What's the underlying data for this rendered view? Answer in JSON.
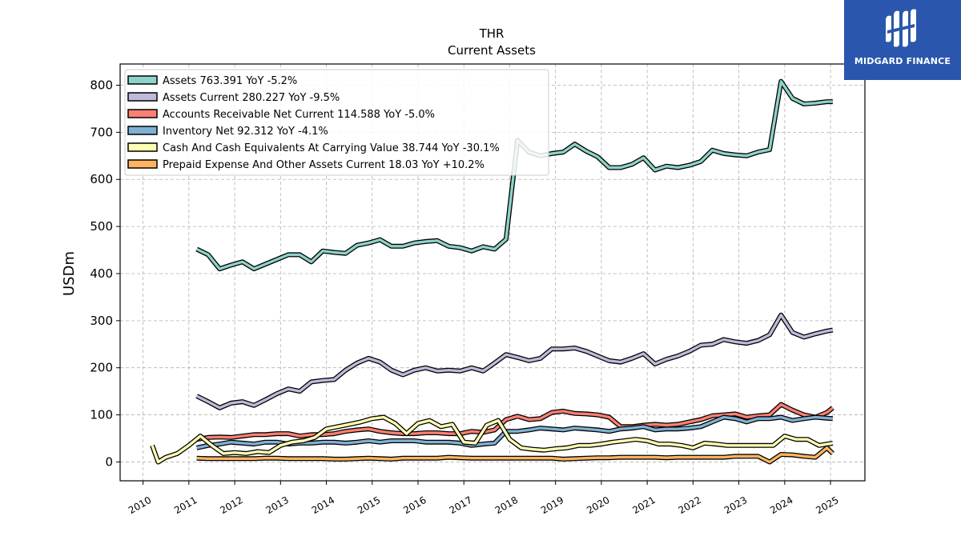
{
  "brand": {
    "name": "MIDGARD FINANCE",
    "bg_color": "#2a57ad"
  },
  "chart_data": {
    "type": "line",
    "title": "THR",
    "subtitle": "Current  Assets",
    "ylabel": "USDm",
    "xlabel": "",
    "xlim": [
      2009.5,
      2025.75
    ],
    "ylim": [
      -40,
      845
    ],
    "x_ticks": [
      "2010",
      "2011",
      "2012",
      "2013",
      "2014",
      "2015",
      "2016",
      "2017",
      "2018",
      "2019",
      "2020",
      "2021",
      "2022",
      "2023",
      "2024",
      "2025"
    ],
    "y_ticks": [
      0,
      100,
      200,
      300,
      400,
      500,
      600,
      700,
      800
    ],
    "grid": true,
    "legend_position": "top-left",
    "series": [
      {
        "name": "Assets",
        "legend": "Assets  763.391 YoY -5.2%",
        "color": "#8dd3c7",
        "x": [
          2011.17,
          2011.42,
          2011.67,
          2011.92,
          2012.17,
          2012.42,
          2012.67,
          2012.92,
          2013.17,
          2013.42,
          2013.67,
          2013.92,
          2014.17,
          2014.42,
          2014.67,
          2014.92,
          2015.17,
          2015.42,
          2015.67,
          2015.92,
          2016.17,
          2016.42,
          2016.67,
          2016.92,
          2017.17,
          2017.42,
          2017.67,
          2017.92,
          2018.17,
          2018.42,
          2018.67,
          2018.92,
          2019.17,
          2019.42,
          2019.67,
          2019.92,
          2020.17,
          2020.42,
          2020.67,
          2020.92,
          2021.17,
          2021.42,
          2021.67,
          2021.92,
          2022.17,
          2022.42,
          2022.67,
          2022.92,
          2023.17,
          2023.42,
          2023.67,
          2023.92,
          2024.17,
          2024.42,
          2024.67,
          2024.92,
          2025.05
        ],
        "y": [
          452,
          440,
          410,
          418,
          425,
          410,
          420,
          430,
          440,
          440,
          425,
          448,
          445,
          443,
          460,
          465,
          472,
          458,
          458,
          465,
          468,
          470,
          458,
          455,
          448,
          457,
          452,
          473,
          683,
          658,
          650,
          655,
          658,
          675,
          660,
          648,
          625,
          625,
          632,
          646,
          620,
          628,
          625,
          630,
          638,
          662,
          655,
          652,
          650,
          658,
          663,
          808,
          772,
          760,
          762,
          765,
          765
        ]
      },
      {
        "name": "Assets Current",
        "legend": "Assets Current  280.227 YoY -9.5%",
        "color": "#bebada",
        "x": [
          2011.17,
          2011.42,
          2011.67,
          2011.92,
          2012.17,
          2012.42,
          2012.67,
          2012.92,
          2013.17,
          2013.42,
          2013.67,
          2013.92,
          2014.17,
          2014.42,
          2014.67,
          2014.92,
          2015.17,
          2015.42,
          2015.67,
          2015.92,
          2016.17,
          2016.42,
          2016.67,
          2016.92,
          2017.17,
          2017.42,
          2017.67,
          2017.92,
          2018.17,
          2018.42,
          2018.67,
          2018.92,
          2019.17,
          2019.42,
          2019.67,
          2019.92,
          2020.17,
          2020.42,
          2020.67,
          2020.92,
          2021.17,
          2021.42,
          2021.67,
          2021.92,
          2022.17,
          2022.42,
          2022.67,
          2022.92,
          2023.17,
          2023.42,
          2023.67,
          2023.92,
          2024.17,
          2024.42,
          2024.67,
          2024.92,
          2025.05
        ],
        "y": [
          140,
          128,
          115,
          125,
          128,
          120,
          132,
          145,
          155,
          150,
          170,
          173,
          175,
          195,
          210,
          220,
          212,
          195,
          185,
          195,
          200,
          193,
          195,
          193,
          200,
          193,
          210,
          228,
          222,
          215,
          220,
          240,
          240,
          242,
          235,
          225,
          215,
          212,
          220,
          230,
          208,
          218,
          225,
          235,
          248,
          250,
          260,
          255,
          252,
          258,
          270,
          312,
          275,
          265,
          272,
          278,
          280
        ]
      },
      {
        "name": "Accounts Receivable Net Current",
        "legend": "Accounts Receivable Net Current  114.588 YoY -5.0%",
        "color": "#fb8072",
        "x": [
          2011.17,
          2011.42,
          2011.67,
          2011.92,
          2012.17,
          2012.42,
          2012.67,
          2012.92,
          2013.17,
          2013.42,
          2013.67,
          2013.92,
          2014.17,
          2014.42,
          2014.67,
          2014.92,
          2015.17,
          2015.42,
          2015.67,
          2015.92,
          2016.17,
          2016.42,
          2016.67,
          2016.92,
          2017.17,
          2017.42,
          2017.67,
          2017.92,
          2018.17,
          2018.42,
          2018.67,
          2018.92,
          2019.17,
          2019.42,
          2019.67,
          2019.92,
          2020.17,
          2020.42,
          2020.67,
          2020.92,
          2021.17,
          2021.42,
          2021.67,
          2021.92,
          2022.17,
          2022.42,
          2022.67,
          2022.92,
          2023.17,
          2023.42,
          2023.67,
          2023.92,
          2024.17,
          2024.42,
          2024.67,
          2024.92,
          2025.05
        ],
        "y": [
          48,
          52,
          53,
          52,
          55,
          58,
          58,
          60,
          60,
          55,
          58,
          58,
          60,
          65,
          68,
          70,
          65,
          62,
          60,
          60,
          62,
          62,
          60,
          60,
          65,
          63,
          68,
          90,
          97,
          90,
          92,
          105,
          108,
          103,
          102,
          100,
          95,
          75,
          75,
          78,
          80,
          78,
          80,
          85,
          90,
          98,
          100,
          102,
          95,
          98,
          100,
          122,
          110,
          100,
          95,
          105,
          115
        ]
      },
      {
        "name": "Inventory Net",
        "legend": "Inventory Net  92.312 YoY -4.1%",
        "color": "#80b1d3",
        "x": [
          2011.17,
          2011.42,
          2011.67,
          2011.92,
          2012.17,
          2012.42,
          2012.67,
          2012.92,
          2013.17,
          2013.42,
          2013.67,
          2013.92,
          2014.17,
          2014.42,
          2014.67,
          2014.92,
          2015.17,
          2015.42,
          2015.67,
          2015.92,
          2016.17,
          2016.42,
          2016.67,
          2016.92,
          2017.17,
          2017.42,
          2017.67,
          2017.92,
          2018.17,
          2018.42,
          2018.67,
          2018.92,
          2019.17,
          2019.42,
          2019.67,
          2019.92,
          2020.17,
          2020.42,
          2020.67,
          2020.92,
          2021.17,
          2021.42,
          2021.67,
          2021.92,
          2022.17,
          2022.42,
          2022.67,
          2022.92,
          2023.17,
          2023.42,
          2023.67,
          2023.92,
          2024.17,
          2024.42,
          2024.67,
          2024.92,
          2025.05
        ],
        "y": [
          30,
          35,
          38,
          42,
          40,
          38,
          42,
          42,
          38,
          40,
          40,
          42,
          42,
          40,
          42,
          45,
          42,
          45,
          45,
          45,
          42,
          42,
          42,
          40,
          35,
          38,
          40,
          65,
          65,
          68,
          72,
          70,
          68,
          72,
          70,
          68,
          65,
          70,
          72,
          75,
          68,
          70,
          70,
          72,
          75,
          85,
          95,
          92,
          85,
          92,
          92,
          95,
          88,
          92,
          95,
          93,
          92
        ]
      },
      {
        "name": "Cash And Cash Equivalents At Carrying Value",
        "legend": "Cash And Cash Equivalents At Carrying Value  38.744 YoY -30.1%",
        "color": "#ffffb3",
        "x": [
          2010.2,
          2010.33,
          2010.5,
          2010.75,
          2011.0,
          2011.25,
          2011.5,
          2011.75,
          2012.0,
          2012.25,
          2012.5,
          2012.75,
          2013.0,
          2013.25,
          2013.5,
          2013.75,
          2014.0,
          2014.25,
          2014.5,
          2014.75,
          2015.0,
          2015.25,
          2015.5,
          2015.75,
          2016.0,
          2016.25,
          2016.5,
          2016.75,
          2017.0,
          2017.25,
          2017.5,
          2017.75,
          2018.0,
          2018.25,
          2018.5,
          2018.75,
          2019.0,
          2019.25,
          2019.5,
          2019.75,
          2020.0,
          2020.25,
          2020.5,
          2020.75,
          2021.0,
          2021.25,
          2021.5,
          2021.75,
          2022.0,
          2022.25,
          2022.5,
          2022.75,
          2023.0,
          2023.25,
          2023.5,
          2023.75,
          2024.0,
          2024.25,
          2024.5,
          2024.75,
          2025.05
        ],
        "y": [
          35,
          0,
          10,
          18,
          35,
          55,
          35,
          18,
          20,
          18,
          22,
          20,
          35,
          42,
          45,
          52,
          70,
          75,
          80,
          85,
          92,
          95,
          82,
          60,
          82,
          88,
          75,
          80,
          42,
          40,
          78,
          88,
          48,
          30,
          27,
          25,
          28,
          30,
          35,
          35,
          38,
          42,
          45,
          48,
          45,
          38,
          38,
          35,
          30,
          40,
          38,
          35,
          35,
          35,
          35,
          35,
          55,
          48,
          48,
          35,
          40
        ]
      },
      {
        "name": "Prepaid Expense And Other Assets Current",
        "legend": "Prepaid Expense And Other Assets Current  18.03 YoY +10.2%",
        "color": "#fdb462",
        "x": [
          2011.17,
          2011.42,
          2011.67,
          2011.92,
          2012.17,
          2012.42,
          2012.67,
          2012.92,
          2013.17,
          2013.42,
          2013.67,
          2013.92,
          2014.17,
          2014.42,
          2014.67,
          2014.92,
          2015.17,
          2015.42,
          2015.67,
          2015.92,
          2016.17,
          2016.42,
          2016.67,
          2016.92,
          2017.17,
          2017.42,
          2017.67,
          2017.92,
          2018.17,
          2018.42,
          2018.67,
          2018.92,
          2019.17,
          2019.42,
          2019.67,
          2019.92,
          2020.17,
          2020.42,
          2020.67,
          2020.92,
          2021.17,
          2021.42,
          2021.67,
          2021.92,
          2022.17,
          2022.42,
          2022.67,
          2022.92,
          2023.17,
          2023.42,
          2023.67,
          2023.92,
          2024.17,
          2024.42,
          2024.67,
          2024.92,
          2025.05
        ],
        "y": [
          8,
          7,
          7,
          7,
          7,
          7,
          8,
          8,
          7,
          7,
          7,
          7,
          6,
          6,
          7,
          8,
          7,
          6,
          8,
          8,
          8,
          8,
          10,
          9,
          8,
          8,
          8,
          8,
          8,
          8,
          8,
          8,
          6,
          7,
          8,
          9,
          9,
          10,
          10,
          10,
          10,
          9,
          10,
          10,
          10,
          10,
          10,
          12,
          12,
          12,
          0,
          16,
          15,
          12,
          10,
          30,
          18
        ]
      }
    ]
  }
}
